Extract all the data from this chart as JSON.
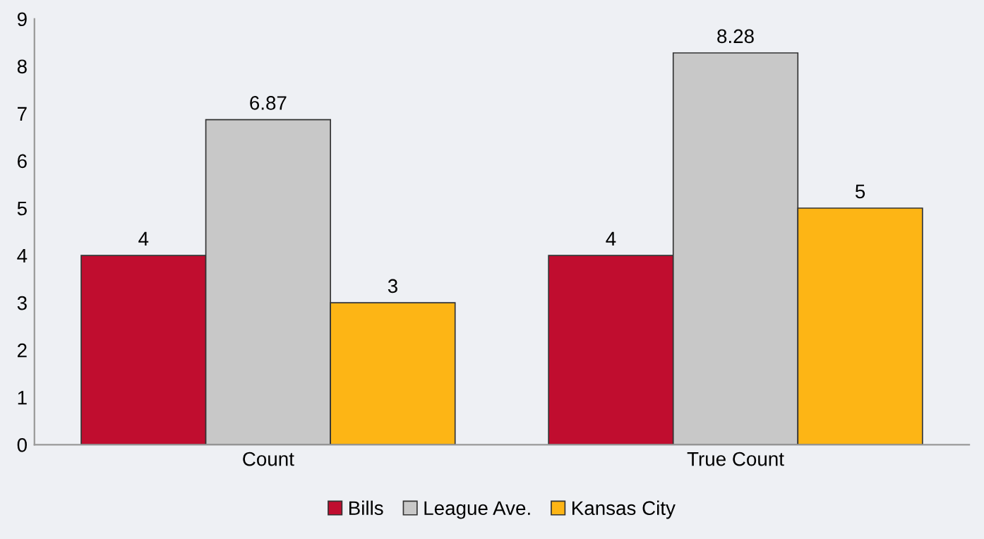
{
  "chart_data": {
    "type": "bar",
    "categories": [
      "Count",
      "True Count"
    ],
    "series": [
      {
        "name": "Bills",
        "color": "#c00d2f",
        "values": [
          4,
          4
        ]
      },
      {
        "name": "League Ave.",
        "color": "#c8c8c8",
        "values": [
          6.87,
          8.28
        ]
      },
      {
        "name": "Kansas City",
        "color": "#fdb515",
        "values": [
          3,
          5
        ]
      }
    ],
    "ylim": [
      0,
      9
    ],
    "yticks": [
      0,
      1,
      2,
      3,
      4,
      5,
      6,
      7,
      8,
      9
    ],
    "data_labels": true,
    "legend": "bottom",
    "grid": false
  }
}
